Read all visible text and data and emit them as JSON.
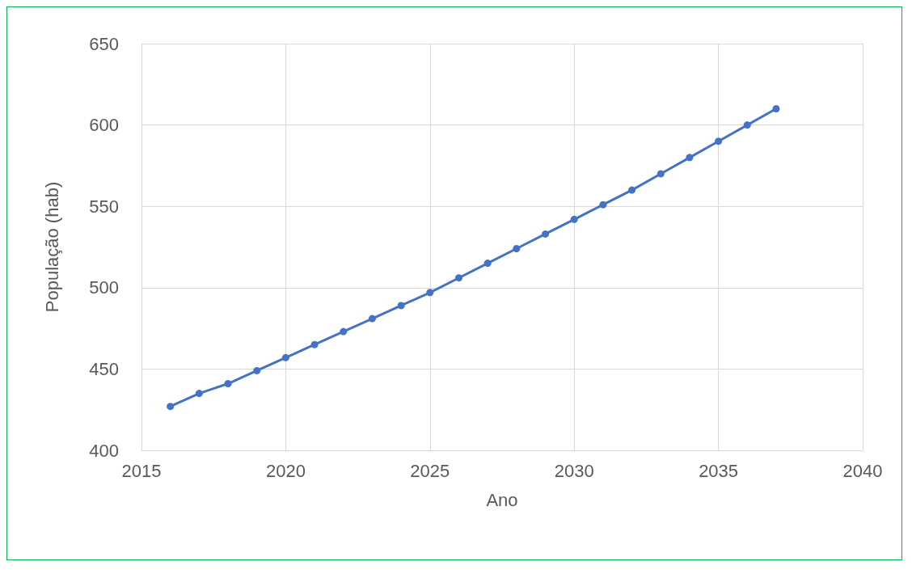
{
  "chart_data": {
    "type": "line",
    "xlabel": "Ano",
    "ylabel": "População (hab)",
    "x": [
      2016,
      2017,
      2018,
      2019,
      2020,
      2021,
      2022,
      2023,
      2024,
      2025,
      2026,
      2027,
      2028,
      2029,
      2030,
      2031,
      2032,
      2033,
      2034,
      2035,
      2036,
      2037
    ],
    "series": [
      {
        "color": "#4472c4",
        "values": [
          427,
          435,
          441,
          449,
          457,
          465,
          473,
          481,
          489,
          497,
          506,
          515,
          524,
          533,
          542,
          551,
          560,
          570,
          580,
          590,
          600,
          610
        ]
      }
    ],
    "xlim": [
      2015,
      2040
    ],
    "xticks": [
      2015,
      2020,
      2025,
      2030,
      2035,
      2040
    ],
    "ylim": [
      400,
      650
    ],
    "yticks": [
      400,
      450,
      500,
      550,
      600,
      650
    ],
    "grid": true,
    "marker": "circle",
    "line_style": "solid"
  }
}
